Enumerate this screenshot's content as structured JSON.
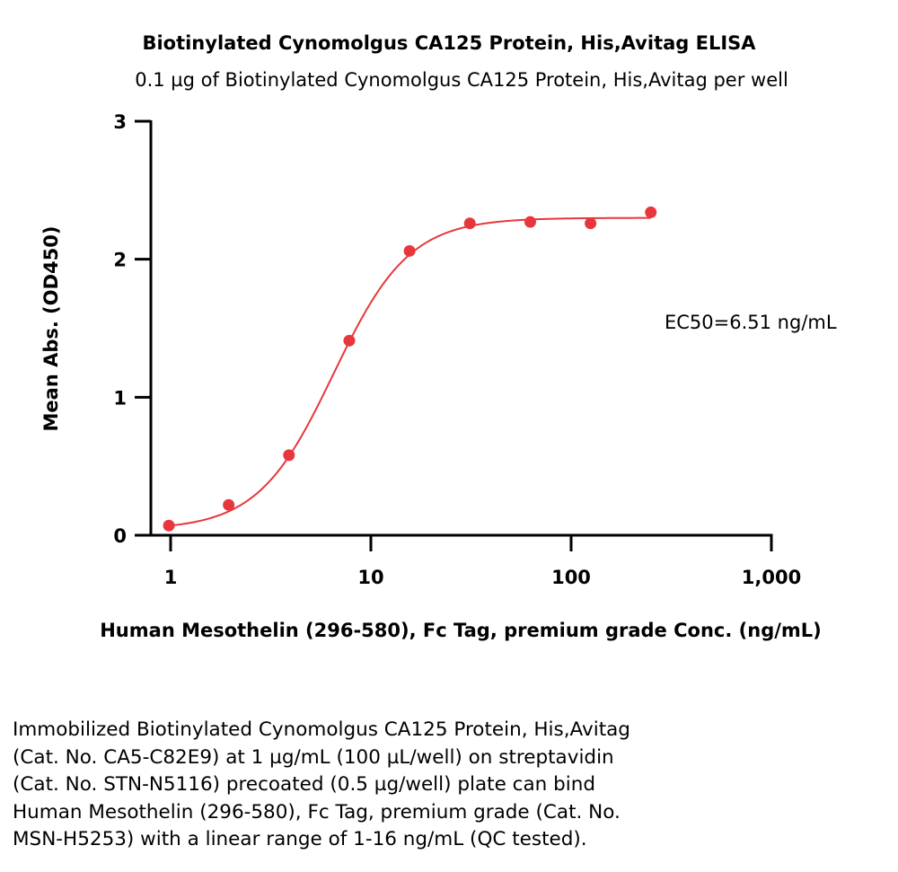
{
  "chart_data": {
    "type": "scatter",
    "title": "Biotinylated Cynomolgus CA125 Protein, His,Avitag ELISA",
    "subtitle": "0.1 µg of Biotinylated Cynomolgus CA125 Protein, His,Avitag per well",
    "xlabel": "Human Mesothelin (296-580), Fc Tag, premium grade Conc. (ng/mL)",
    "ylabel": "Mean Abs. (OD450)",
    "x_scale": "log",
    "xlim": [
      0.8,
      1000
    ],
    "ylim": [
      0,
      3
    ],
    "x_ticks": [
      {
        "value": 1,
        "label": "1"
      },
      {
        "value": 10,
        "label": "10"
      },
      {
        "value": 100,
        "label": "100"
      },
      {
        "value": 1000,
        "label": "1,000"
      }
    ],
    "y_ticks": [
      {
        "value": 0,
        "label": "0"
      },
      {
        "value": 1,
        "label": "1"
      },
      {
        "value": 2,
        "label": "2"
      },
      {
        "value": 3,
        "label": "3"
      }
    ],
    "annotation": "EC50=6.51 ng/mL",
    "grid": false,
    "color": "#e8373c",
    "points": [
      {
        "x": 0.98,
        "y": 0.07
      },
      {
        "x": 1.95,
        "y": 0.22
      },
      {
        "x": 3.9,
        "y": 0.58
      },
      {
        "x": 7.8,
        "y": 1.41
      },
      {
        "x": 15.6,
        "y": 2.06
      },
      {
        "x": 31.2,
        "y": 2.26
      },
      {
        "x": 62.5,
        "y": 2.27
      },
      {
        "x": 125,
        "y": 2.26
      },
      {
        "x": 250,
        "y": 2.34
      }
    ],
    "fit": {
      "bottom": 0.04,
      "top": 2.3,
      "ec50": 6.51,
      "hill": 2.3
    }
  },
  "caption": [
    "Immobilized Biotinylated Cynomolgus CA125 Protein, His,Avitag",
    "(Cat. No. CA5-C82E9) at 1 µg/mL (100 µL/well) on streptavidin",
    "(Cat. No. STN-N5116) precoated (0.5 µg/well) plate can bind",
    "Human Mesothelin (296-580), Fc Tag, premium grade (Cat. No.",
    "MSN-H5253) with a linear range of 1-16 ng/mL (QC tested)."
  ]
}
